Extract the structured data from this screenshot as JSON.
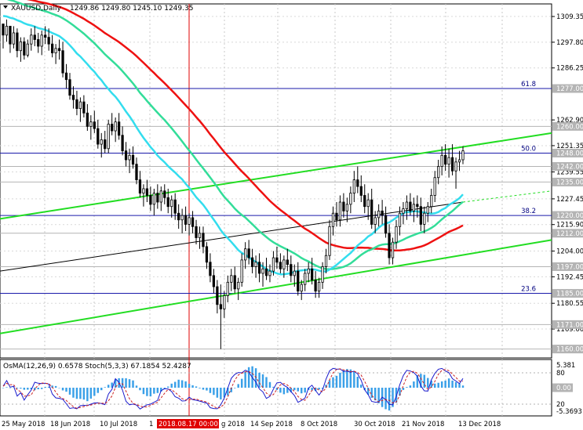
{
  "header": {
    "symbol": "XAUUSD,Daily",
    "ohlc": "1249.86 1249.80 1245.10 1249.35"
  },
  "osc_header": "OsMA(12,26,9) 0.6578  Stoch(5,3,3) 67.1854 52.4287",
  "chart_data": {
    "type": "candlestick",
    "price_axis_ticks": [
      "1309.35",
      "1297.80",
      "1286.25",
      "1262.90",
      "1251.35",
      "1239.55",
      "1227.45",
      "1215.90",
      "1204.00",
      "1192.45",
      "1180.55",
      "1169.00"
    ],
    "price_range": [
      1156,
      1315
    ],
    "highlight_price_labels": [
      "1277.00",
      "1260.00",
      "1248.00",
      "1242.00",
      "1235.00",
      "1220.00",
      "1212.00",
      "1197.00",
      "1185.00",
      "1171.00",
      "1160.00"
    ],
    "fib_levels": [
      {
        "label": "61.8",
        "price": 1277.0
      },
      {
        "label": "50.0",
        "price": 1248.0
      },
      {
        "label": "38.2",
        "price": 1220.0
      },
      {
        "label": "23.6",
        "price": 1185.0
      }
    ],
    "x_labels": [
      "25 May 2018",
      "18 Jun 2018",
      "10 Jul 2018",
      "1",
      "2018.08.17 00:00",
      "g 2018",
      "14 Sep 2018",
      "8 Oct 2018",
      "30 Oct 2018",
      "21 Nov 2018",
      "13 Dec 2018"
    ],
    "osc_axis_ticks": [
      "5.381",
      "80",
      "0.00",
      "20",
      "-5.3693"
    ],
    "osc_highlight": "0.00",
    "candles": [
      [
        1306,
        1306,
        1295,
        1301
      ],
      [
        1301,
        1308,
        1298,
        1305
      ],
      [
        1305,
        1305,
        1293,
        1297
      ],
      [
        1297,
        1305,
        1295,
        1302
      ],
      [
        1302,
        1304,
        1291,
        1294
      ],
      [
        1294,
        1300,
        1289,
        1298
      ],
      [
        1298,
        1300,
        1290,
        1292
      ],
      [
        1292,
        1299,
        1291,
        1297
      ],
      [
        1297,
        1304,
        1294,
        1301
      ],
      [
        1301,
        1305,
        1296,
        1299
      ],
      [
        1299,
        1302,
        1293,
        1296
      ],
      [
        1296,
        1303,
        1292,
        1301
      ],
      [
        1301,
        1305,
        1297,
        1300
      ],
      [
        1300,
        1304,
        1294,
        1297
      ],
      [
        1297,
        1301,
        1291,
        1293
      ],
      [
        1293,
        1297,
        1288,
        1295
      ],
      [
        1295,
        1299,
        1290,
        1294
      ],
      [
        1294,
        1298,
        1282,
        1284
      ],
      [
        1284,
        1288,
        1277,
        1281
      ],
      [
        1281,
        1284,
        1272,
        1274
      ],
      [
        1274,
        1278,
        1268,
        1272
      ],
      [
        1272,
        1276,
        1265,
        1268
      ],
      [
        1268,
        1273,
        1262,
        1271
      ],
      [
        1271,
        1274,
        1264,
        1266
      ],
      [
        1266,
        1270,
        1258,
        1260
      ],
      [
        1260,
        1265,
        1254,
        1262
      ],
      [
        1262,
        1267,
        1257,
        1259
      ],
      [
        1259,
        1263,
        1250,
        1252
      ],
      [
        1252,
        1257,
        1246,
        1254
      ],
      [
        1254,
        1258,
        1248,
        1250
      ],
      [
        1250,
        1263,
        1248,
        1261
      ],
      [
        1261,
        1266,
        1256,
        1258
      ],
      [
        1258,
        1264,
        1253,
        1262
      ],
      [
        1262,
        1266,
        1254,
        1256
      ],
      [
        1256,
        1260,
        1247,
        1249
      ],
      [
        1249,
        1253,
        1242,
        1245
      ],
      [
        1245,
        1250,
        1239,
        1247
      ],
      [
        1247,
        1251,
        1241,
        1243
      ],
      [
        1243,
        1246,
        1234,
        1236
      ],
      [
        1236,
        1240,
        1228,
        1230
      ],
      [
        1230,
        1234,
        1224,
        1232
      ],
      [
        1232,
        1236,
        1226,
        1229
      ],
      [
        1229,
        1233,
        1222,
        1225
      ],
      [
        1225,
        1232,
        1220,
        1230
      ],
      [
        1230,
        1234,
        1223,
        1226
      ],
      [
        1226,
        1233,
        1222,
        1231
      ],
      [
        1231,
        1234,
        1225,
        1228
      ],
      [
        1228,
        1232,
        1221,
        1224
      ],
      [
        1224,
        1229,
        1219,
        1227
      ],
      [
        1227,
        1230,
        1218,
        1221
      ],
      [
        1221,
        1225,
        1214,
        1218
      ],
      [
        1218,
        1223,
        1212,
        1220
      ],
      [
        1220,
        1224,
        1213,
        1216
      ],
      [
        1216,
        1221,
        1211,
        1219
      ],
      [
        1219,
        1222,
        1212,
        1215
      ],
      [
        1215,
        1218,
        1207,
        1210
      ],
      [
        1210,
        1215,
        1205,
        1212
      ],
      [
        1212,
        1215,
        1203,
        1206
      ],
      [
        1206,
        1208,
        1196,
        1199
      ],
      [
        1199,
        1203,
        1190,
        1193
      ],
      [
        1193,
        1196,
        1185,
        1188
      ],
      [
        1188,
        1191,
        1176,
        1180
      ],
      [
        1180,
        1189,
        1160,
        1178
      ],
      [
        1178,
        1186,
        1174,
        1184
      ],
      [
        1184,
        1193,
        1181,
        1190
      ],
      [
        1190,
        1196,
        1186,
        1193
      ],
      [
        1193,
        1197,
        1185,
        1187
      ],
      [
        1187,
        1192,
        1182,
        1190
      ],
      [
        1190,
        1203,
        1188,
        1200
      ],
      [
        1200,
        1208,
        1196,
        1205
      ],
      [
        1205,
        1209,
        1198,
        1201
      ],
      [
        1201,
        1205,
        1194,
        1197
      ],
      [
        1197,
        1202,
        1192,
        1199
      ],
      [
        1199,
        1203,
        1190,
        1194
      ],
      [
        1194,
        1199,
        1188,
        1196
      ],
      [
        1196,
        1201,
        1191,
        1193
      ],
      [
        1193,
        1198,
        1190,
        1195
      ],
      [
        1195,
        1204,
        1193,
        1201
      ],
      [
        1201,
        1206,
        1196,
        1199
      ],
      [
        1199,
        1203,
        1194,
        1196
      ],
      [
        1196,
        1202,
        1192,
        1200
      ],
      [
        1200,
        1205,
        1195,
        1198
      ],
      [
        1198,
        1202,
        1190,
        1193
      ],
      [
        1193,
        1198,
        1188,
        1195
      ],
      [
        1195,
        1199,
        1184,
        1186
      ],
      [
        1186,
        1191,
        1182,
        1189
      ],
      [
        1189,
        1196,
        1186,
        1194
      ],
      [
        1194,
        1199,
        1190,
        1196
      ],
      [
        1196,
        1201,
        1189,
        1191
      ],
      [
        1191,
        1195,
        1183,
        1186
      ],
      [
        1186,
        1192,
        1183,
        1190
      ],
      [
        1190,
        1199,
        1187,
        1197
      ],
      [
        1197,
        1205,
        1194,
        1202
      ],
      [
        1202,
        1218,
        1200,
        1215
      ],
      [
        1215,
        1224,
        1211,
        1221
      ],
      [
        1221,
        1226,
        1215,
        1218
      ],
      [
        1218,
        1229,
        1215,
        1226
      ],
      [
        1226,
        1230,
        1219,
        1222
      ],
      [
        1222,
        1228,
        1217,
        1225
      ],
      [
        1225,
        1233,
        1221,
        1230
      ],
      [
        1230,
        1240,
        1226,
        1236
      ],
      [
        1236,
        1242,
        1230,
        1233
      ],
      [
        1233,
        1238,
        1226,
        1229
      ],
      [
        1229,
        1234,
        1221,
        1224
      ],
      [
        1224,
        1230,
        1218,
        1227
      ],
      [
        1227,
        1232,
        1214,
        1216
      ],
      [
        1216,
        1222,
        1212,
        1219
      ],
      [
        1219,
        1225,
        1215,
        1222
      ],
      [
        1222,
        1227,
        1216,
        1220
      ],
      [
        1220,
        1224,
        1210,
        1212
      ],
      [
        1212,
        1216,
        1198,
        1201
      ],
      [
        1201,
        1210,
        1198,
        1208
      ],
      [
        1208,
        1218,
        1205,
        1215
      ],
      [
        1215,
        1224,
        1211,
        1221
      ],
      [
        1221,
        1226,
        1216,
        1223
      ],
      [
        1223,
        1229,
        1218,
        1226
      ],
      [
        1226,
        1230,
        1220,
        1222
      ],
      [
        1222,
        1228,
        1217,
        1225
      ],
      [
        1225,
        1229,
        1219,
        1224
      ],
      [
        1224,
        1228,
        1213,
        1216
      ],
      [
        1216,
        1224,
        1212,
        1221
      ],
      [
        1221,
        1226,
        1217,
        1224
      ],
      [
        1224,
        1232,
        1221,
        1229
      ],
      [
        1229,
        1240,
        1226,
        1237
      ],
      [
        1237,
        1245,
        1234,
        1242
      ],
      [
        1242,
        1251,
        1238,
        1247
      ],
      [
        1247,
        1252,
        1240,
        1243
      ],
      [
        1243,
        1250,
        1237,
        1246
      ],
      [
        1246,
        1252,
        1238,
        1240
      ],
      [
        1240,
        1246,
        1232,
        1244
      ],
      [
        1244,
        1249,
        1240,
        1245
      ],
      [
        1245,
        1251,
        1243,
        1249
      ]
    ]
  }
}
